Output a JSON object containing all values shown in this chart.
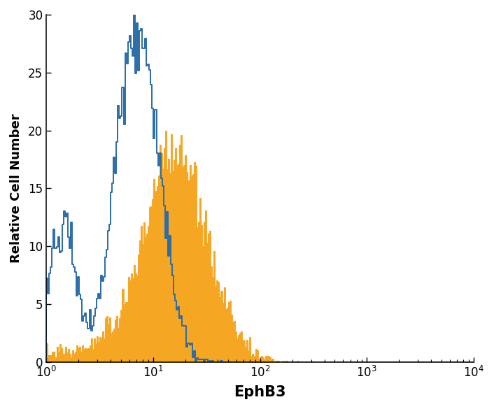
{
  "title": "",
  "xlabel": "EphB3",
  "ylabel": "Relative Cell Number",
  "xlim_log": [
    0,
    4
  ],
  "ylim": [
    0,
    30
  ],
  "yticks": [
    0,
    5,
    10,
    15,
    20,
    25,
    30
  ],
  "background_color": "#ffffff",
  "open_histogram_color": "#2b6ca8",
  "filled_histogram_color": "#f5a623",
  "open_histogram_linewidth": 1.4,
  "xlabel_fontsize": 15,
  "ylabel_fontsize": 13,
  "tick_fontsize": 12
}
